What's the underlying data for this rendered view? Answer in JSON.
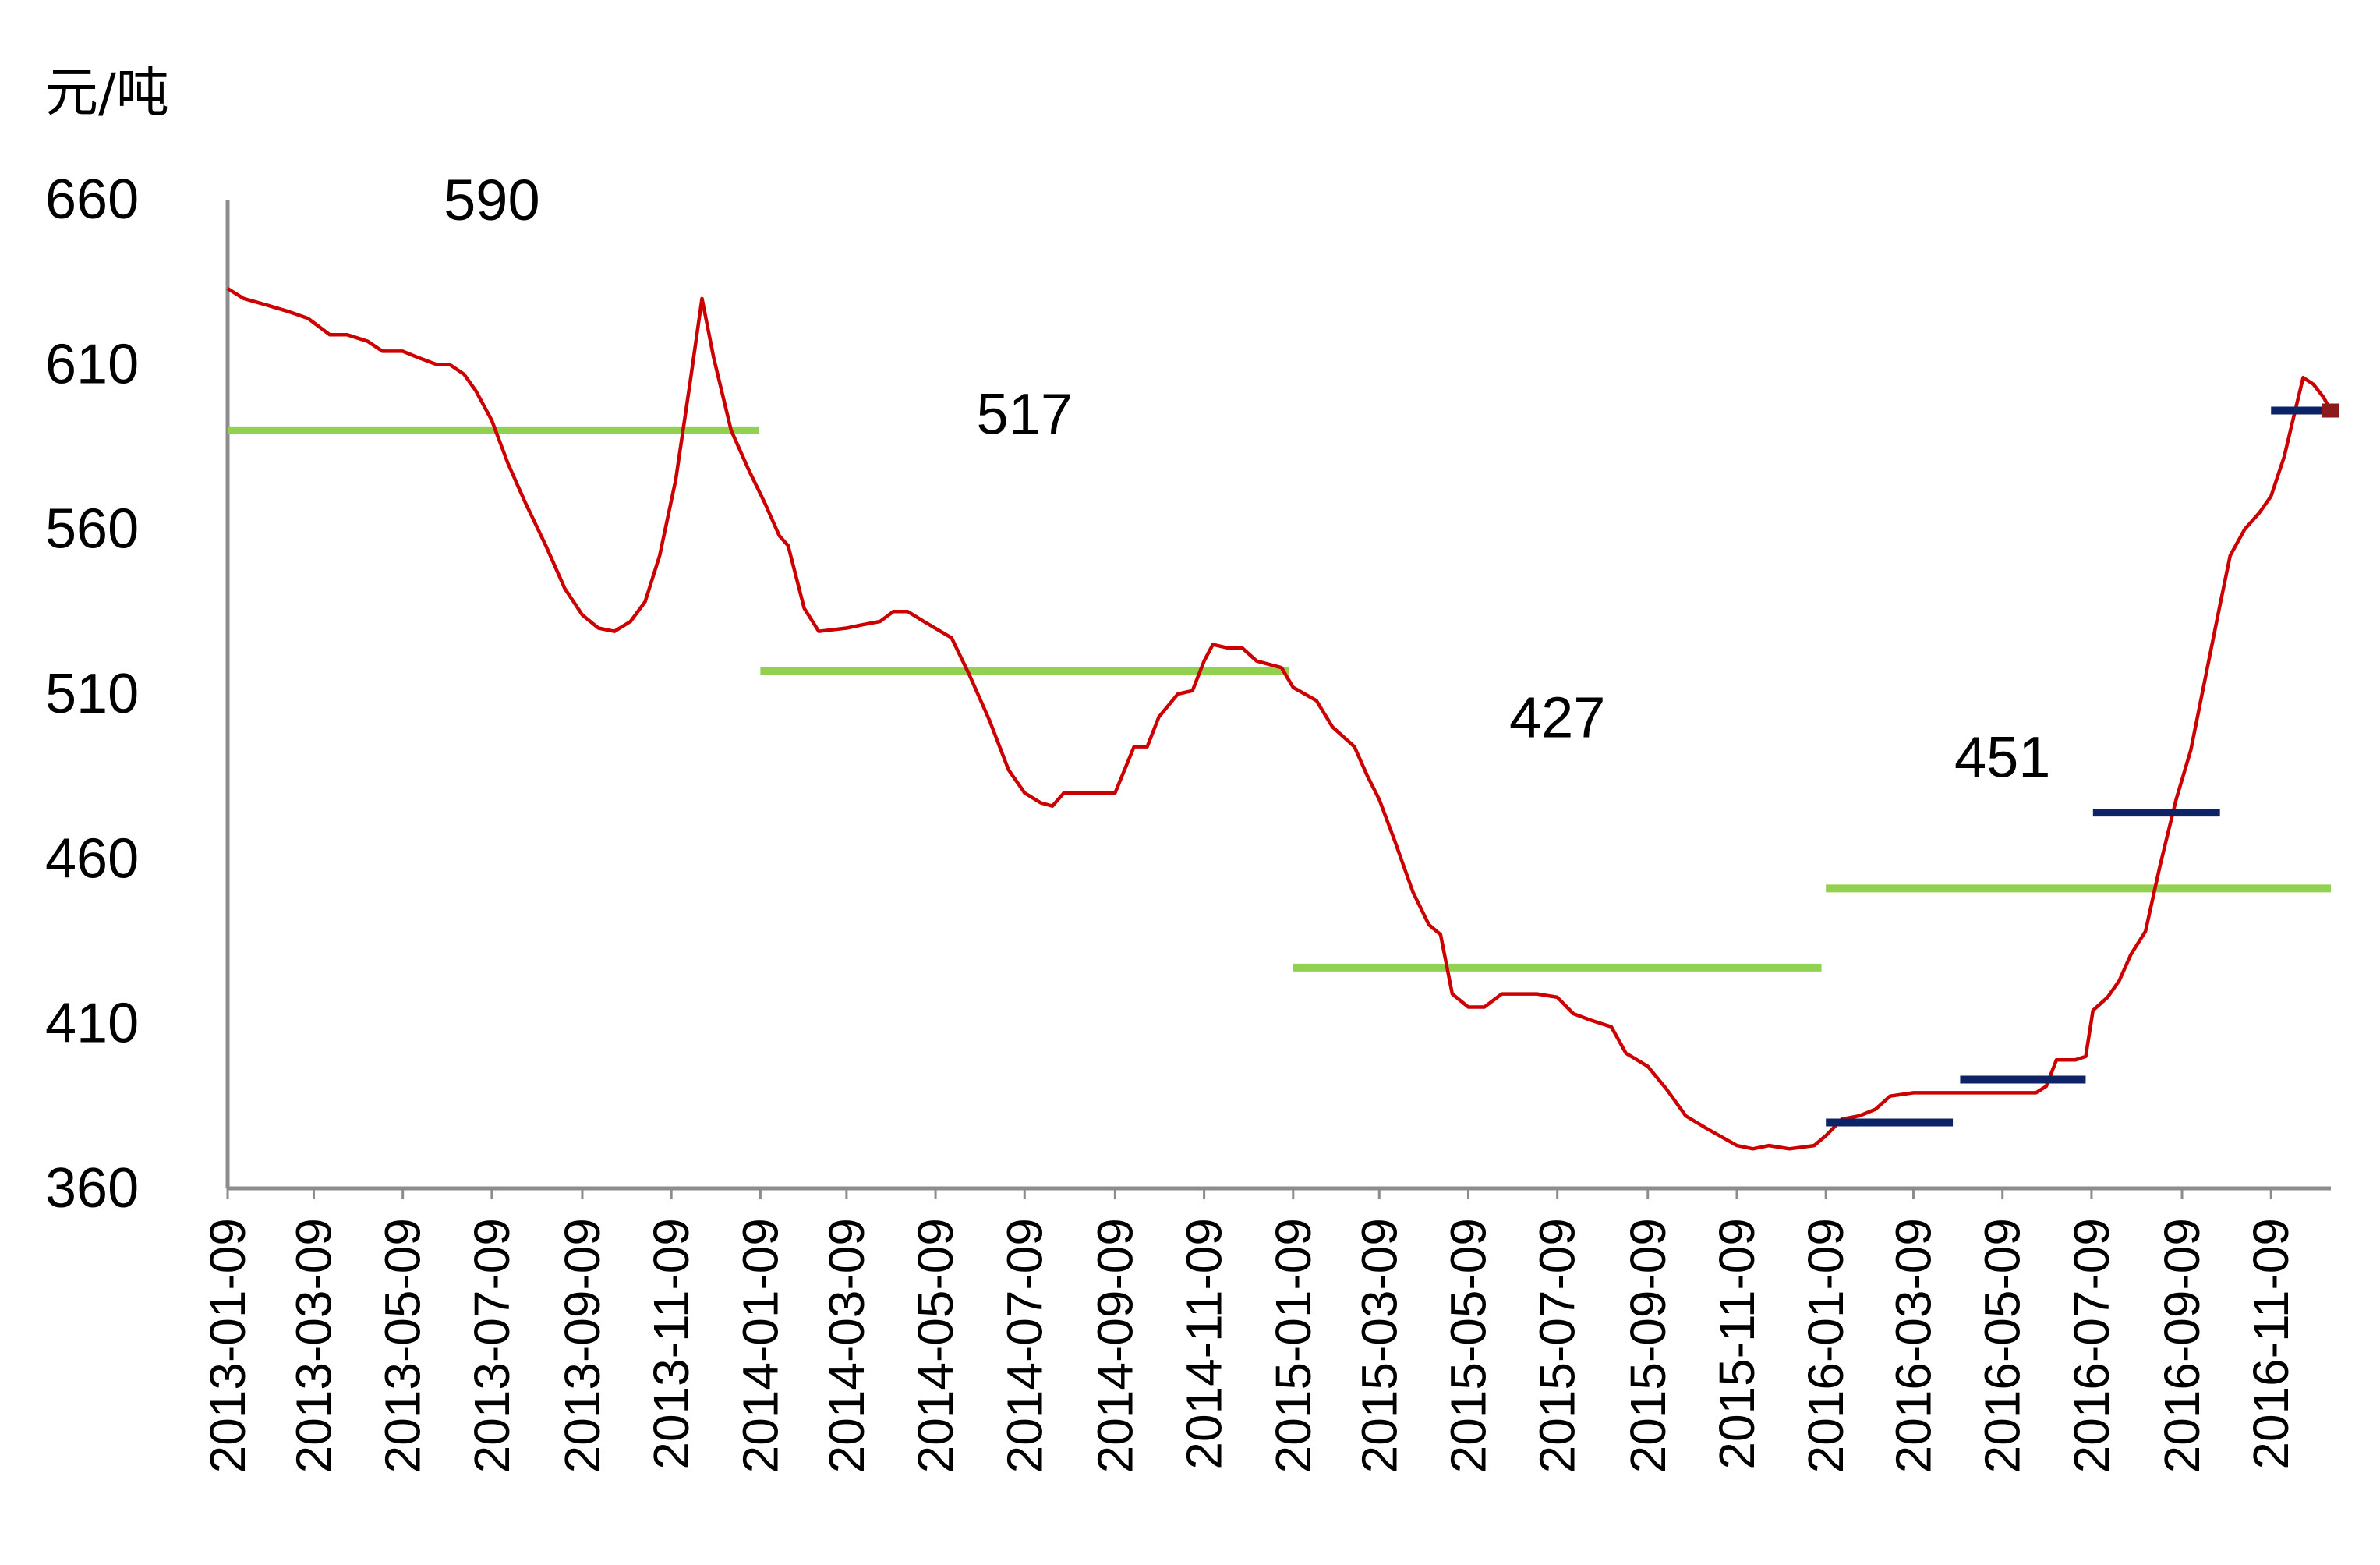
{
  "chart_data": {
    "type": "line",
    "ylabel": "元/吨",
    "ylim": [
      360,
      660
    ],
    "yticks": [
      360,
      410,
      460,
      510,
      560,
      610,
      660
    ],
    "xlim": [
      "2013-01-09",
      "2016-12-20"
    ],
    "xticks": [
      "2013-01-09",
      "2013-03-09",
      "2013-05-09",
      "2013-07-09",
      "2013-09-09",
      "2013-11-09",
      "2014-01-09",
      "2014-03-09",
      "2014-05-09",
      "2014-07-09",
      "2014-09-09",
      "2014-11-09",
      "2015-01-09",
      "2015-03-09",
      "2015-05-09",
      "2015-07-09",
      "2015-09-09",
      "2015-11-09",
      "2016-01-09",
      "2016-03-09",
      "2016-05-09",
      "2016-07-09",
      "2016-09-09",
      "2016-11-09"
    ],
    "colors": {
      "price": "#cc0000",
      "annual_avg": "#92d050",
      "monthly_avg": "#0c2366",
      "axis": "#8c8c8c"
    },
    "series": [
      {
        "kind": "line",
        "points": [
          [
            "2013-01-09",
            633
          ],
          [
            "2013-01-20",
            630
          ],
          [
            "2013-02-05",
            628
          ],
          [
            "2013-02-20",
            626
          ],
          [
            "2013-03-05",
            624
          ],
          [
            "2013-03-20",
            619
          ],
          [
            "2013-04-01",
            619
          ],
          [
            "2013-04-15",
            617
          ],
          [
            "2013-04-25",
            614
          ],
          [
            "2013-05-09",
            614
          ],
          [
            "2013-05-20",
            612
          ],
          [
            "2013-06-01",
            610
          ],
          [
            "2013-06-10",
            610
          ],
          [
            "2013-06-20",
            607
          ],
          [
            "2013-06-28",
            602
          ],
          [
            "2013-07-09",
            593
          ],
          [
            "2013-07-20",
            580
          ],
          [
            "2013-08-01",
            568
          ],
          [
            "2013-08-15",
            555
          ],
          [
            "2013-08-28",
            542
          ],
          [
            "2013-09-09",
            534
          ],
          [
            "2013-09-20",
            530
          ],
          [
            "2013-10-01",
            529
          ],
          [
            "2013-10-12",
            532
          ],
          [
            "2013-10-22",
            538
          ],
          [
            "2013-11-01",
            552
          ],
          [
            "2013-11-12",
            575
          ],
          [
            "2013-11-22",
            605
          ],
          [
            "2013-11-30",
            630
          ],
          [
            "2013-12-08",
            612
          ],
          [
            "2013-12-20",
            590
          ],
          [
            "2014-01-01",
            578
          ],
          [
            "2014-01-12",
            568
          ],
          [
            "2014-01-22",
            558
          ],
          [
            "2014-01-28",
            555
          ],
          [
            "2014-02-08",
            536
          ],
          [
            "2014-02-18",
            529
          ],
          [
            "2014-03-09",
            530
          ],
          [
            "2014-03-20",
            531
          ],
          [
            "2014-04-01",
            532
          ],
          [
            "2014-04-10",
            535
          ],
          [
            "2014-04-20",
            535
          ],
          [
            "2014-05-01",
            532
          ],
          [
            "2014-05-20",
            527
          ],
          [
            "2014-06-01",
            516
          ],
          [
            "2014-06-15",
            502
          ],
          [
            "2014-06-28",
            487
          ],
          [
            "2014-07-09",
            480
          ],
          [
            "2014-07-20",
            477
          ],
          [
            "2014-07-28",
            476
          ],
          [
            "2014-08-05",
            480
          ],
          [
            "2014-08-20",
            480
          ],
          [
            "2014-09-09",
            480
          ],
          [
            "2014-09-22",
            494
          ],
          [
            "2014-10-01",
            494
          ],
          [
            "2014-10-09",
            503
          ],
          [
            "2014-10-22",
            510
          ],
          [
            "2014-11-01",
            511
          ],
          [
            "2014-11-09",
            520
          ],
          [
            "2014-11-15",
            525
          ],
          [
            "2014-11-25",
            524
          ],
          [
            "2014-12-05",
            524
          ],
          [
            "2014-12-15",
            520
          ],
          [
            "2015-01-01",
            518
          ],
          [
            "2015-01-09",
            512
          ],
          [
            "2015-01-25",
            508
          ],
          [
            "2015-02-05",
            500
          ],
          [
            "2015-02-20",
            494
          ],
          [
            "2015-03-01",
            485
          ],
          [
            "2015-03-09",
            478
          ],
          [
            "2015-03-20",
            465
          ],
          [
            "2015-04-01",
            450
          ],
          [
            "2015-04-12",
            440
          ],
          [
            "2015-04-20",
            437
          ],
          [
            "2015-04-28",
            419
          ],
          [
            "2015-05-09",
            415
          ],
          [
            "2015-05-20",
            415
          ],
          [
            "2015-06-01",
            419
          ],
          [
            "2015-06-15",
            419
          ],
          [
            "2015-06-25",
            419
          ],
          [
            "2015-07-09",
            418
          ],
          [
            "2015-07-20",
            413
          ],
          [
            "2015-08-01",
            411
          ],
          [
            "2015-08-15",
            409
          ],
          [
            "2015-08-25",
            401
          ],
          [
            "2015-09-09",
            397
          ],
          [
            "2015-09-22",
            390
          ],
          [
            "2015-10-05",
            382
          ],
          [
            "2015-10-20",
            378
          ],
          [
            "2015-11-01",
            375
          ],
          [
            "2015-11-09",
            373
          ],
          [
            "2015-11-20",
            372
          ],
          [
            "2015-12-01",
            373
          ],
          [
            "2015-12-15",
            372
          ],
          [
            "2016-01-01",
            373
          ],
          [
            "2016-01-09",
            376
          ],
          [
            "2016-01-20",
            381
          ],
          [
            "2016-02-01",
            382
          ],
          [
            "2016-02-12",
            384
          ],
          [
            "2016-02-22",
            388
          ],
          [
            "2016-03-09",
            389
          ],
          [
            "2016-03-20",
            389
          ],
          [
            "2016-04-01",
            389
          ],
          [
            "2016-04-15",
            389
          ],
          [
            "2016-04-25",
            389
          ],
          [
            "2016-05-09",
            389
          ],
          [
            "2016-05-20",
            389
          ],
          [
            "2016-06-01",
            389
          ],
          [
            "2016-06-08",
            391
          ],
          [
            "2016-06-15",
            399
          ],
          [
            "2016-06-28",
            399
          ],
          [
            "2016-07-05",
            400
          ],
          [
            "2016-07-10",
            414
          ],
          [
            "2016-07-20",
            418
          ],
          [
            "2016-07-28",
            423
          ],
          [
            "2016-08-05",
            431
          ],
          [
            "2016-08-15",
            438
          ],
          [
            "2016-08-25",
            458
          ],
          [
            "2016-09-05",
            478
          ],
          [
            "2016-09-15",
            493
          ],
          [
            "2016-09-25",
            515
          ],
          [
            "2016-10-05",
            537
          ],
          [
            "2016-10-12",
            552
          ],
          [
            "2016-10-22",
            560
          ],
          [
            "2016-11-01",
            565
          ],
          [
            "2016-11-09",
            570
          ],
          [
            "2016-11-18",
            582
          ],
          [
            "2016-11-25",
            595
          ],
          [
            "2016-12-01",
            606
          ],
          [
            "2016-12-08",
            604
          ],
          [
            "2016-12-15",
            600
          ],
          [
            "2016-12-20",
            596
          ]
        ]
      },
      {
        "kind": "hline",
        "lines": [
          {
            "from": "2013-01-09",
            "to": "2014-01-08",
            "value": 590
          },
          {
            "from": "2014-01-09",
            "to": "2015-01-06",
            "value": 517
          },
          {
            "from": "2015-01-09",
            "to": "2016-01-06",
            "value": 427
          },
          {
            "from": "2016-01-09",
            "to": "2016-12-20",
            "value": 451
          }
        ]
      },
      {
        "kind": "hline",
        "lines": [
          {
            "from": "2016-01-09",
            "to": "2016-04-05",
            "value": 380
          },
          {
            "from": "2016-04-10",
            "to": "2016-07-05",
            "value": 393
          },
          {
            "from": "2016-07-10",
            "to": "2016-10-05",
            "value": 474
          },
          {
            "from": "2016-11-09",
            "to": "2016-12-20",
            "value": 596
          }
        ]
      }
    ],
    "annotations": [
      {
        "text": "590",
        "x": "2013-07-09",
        "y": 660
      },
      {
        "text": "517",
        "x": "2014-07-09",
        "y": 595
      },
      {
        "text": "427",
        "x": "2015-07-09",
        "y": 503
      },
      {
        "text": "451",
        "x": "2016-05-09",
        "y": 491
      }
    ]
  }
}
